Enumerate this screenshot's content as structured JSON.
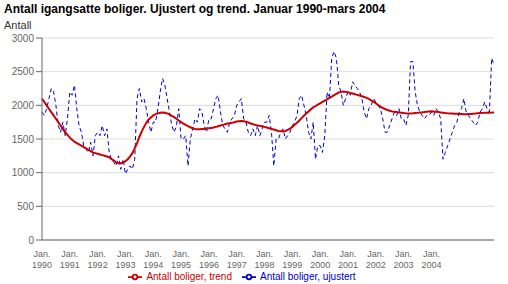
{
  "chart_data": {
    "type": "line",
    "title": "Antall igangsatte boliger. Ujustert og trend. Januar 1990-mars 2004",
    "ylabel": "Antall",
    "ylim": [
      0,
      3000
    ],
    "yticks": [
      0,
      500,
      1000,
      1500,
      2000,
      2500,
      3000
    ],
    "grid": true,
    "legend": "bottom",
    "categories": [
      "Jan.\n1990",
      null,
      null,
      null,
      null,
      null,
      null,
      null,
      null,
      null,
      null,
      null,
      "Jan.\n1991",
      null,
      null,
      null,
      null,
      null,
      null,
      null,
      null,
      null,
      null,
      null,
      "Jan.\n1992",
      null,
      null,
      null,
      null,
      null,
      null,
      null,
      null,
      null,
      null,
      null,
      "Jan.\n1993",
      null,
      null,
      null,
      null,
      null,
      null,
      null,
      null,
      null,
      null,
      null,
      "Jan.\n1994",
      null,
      null,
      null,
      null,
      null,
      null,
      null,
      null,
      null,
      null,
      null,
      "Jan.\n1995",
      null,
      null,
      null,
      null,
      null,
      null,
      null,
      null,
      null,
      null,
      null,
      "Jan.\n1996",
      null,
      null,
      null,
      null,
      null,
      null,
      null,
      null,
      null,
      null,
      null,
      "Jan.\n1997",
      null,
      null,
      null,
      null,
      null,
      null,
      null,
      null,
      null,
      null,
      null,
      "Jan.\n1998",
      null,
      null,
      null,
      null,
      null,
      null,
      null,
      null,
      null,
      null,
      null,
      "Jan.\n1999",
      null,
      null,
      null,
      null,
      null,
      null,
      null,
      null,
      null,
      null,
      null,
      "Jan.\n2000",
      null,
      null,
      null,
      null,
      null,
      null,
      null,
      null,
      null,
      null,
      null,
      "Jan.\n2001",
      null,
      null,
      null,
      null,
      null,
      null,
      null,
      null,
      null,
      null,
      null,
      "Jan.\n2002",
      null,
      null,
      null,
      null,
      null,
      null,
      null,
      null,
      null,
      null,
      null,
      "Jan.\n2003",
      null,
      null,
      null,
      null,
      null,
      null,
      null,
      null,
      null,
      null,
      null,
      "Jan.\n2004",
      null,
      null,
      null,
      null,
      null,
      null,
      null,
      null,
      null,
      null,
      null,
      null,
      null,
      null,
      null,
      null,
      null,
      null,
      null,
      null,
      null,
      null,
      null,
      null,
      null,
      null,
      null
    ],
    "series": [
      {
        "name": "Antall boliger, ujustert",
        "color": "#0000cc",
        "line_style": "dashed",
        "values": [
          1900,
          1850,
          1950,
          2100,
          2250,
          2200,
          2000,
          1700,
          1600,
          1750,
          1550,
          1800,
          2200,
          2150,
          2300,
          1950,
          1700,
          1600,
          1400,
          1350,
          1300,
          1450,
          1250,
          1550,
          1600,
          1550,
          1700,
          1550,
          1650,
          1300,
          1200,
          1150,
          1100,
          1250,
          1050,
          1200,
          980,
          1050,
          1100,
          1050,
          1200,
          2100,
          2250,
          2050,
          2100,
          1950,
          1750,
          1600,
          1750,
          1750,
          1950,
          2200,
          2400,
          2300,
          2100,
          1900,
          1700,
          1600,
          1700,
          1950,
          1500,
          1500,
          1550,
          1100,
          1500,
          1650,
          1800,
          1750,
          1950,
          1900,
          1700,
          1600,
          1800,
          1800,
          1950,
          2100,
          2150,
          1900,
          1700,
          1650,
          1600,
          1750,
          1800,
          1850,
          2000,
          2050,
          2100,
          1800,
          1750,
          1600,
          1550,
          1650,
          1550,
          1700,
          1550,
          1650,
          1750,
          1750,
          1850,
          1600,
          1100,
          1500,
          1500,
          1600,
          1650,
          1500,
          1550,
          1600,
          1700,
          1750,
          1850,
          2100,
          2150,
          2000,
          1850,
          1600,
          1500,
          1750,
          1200,
          1400,
          1400,
          1300,
          1550,
          2200,
          2100,
          2700,
          2800,
          2700,
          2300,
          2200,
          2000,
          2100,
          2200,
          2150,
          2350,
          2300,
          2250,
          2200,
          2100,
          1900,
          1800,
          1950,
          2000,
          2100,
          2050,
          2000,
          1950,
          1800,
          1600,
          1600,
          1700,
          1800,
          1900,
          1850,
          1950,
          1800,
          1800,
          1700,
          1850,
          2650,
          2650,
          2200,
          2000,
          1900,
          1850,
          1800,
          1850,
          1850,
          1900,
          1850,
          1950,
          1900,
          1800,
          1200,
          1300,
          1400,
          1500,
          1600,
          1700,
          1750,
          1900,
          1950,
          2100,
          1900,
          1850,
          1800,
          1750,
          1700,
          1750,
          1900,
          1950,
          2050,
          1950,
          1900,
          2700,
          2600
        ]
      },
      {
        "name": "Antall boliger, trend",
        "color": "#cc0000",
        "line_style": "solid",
        "values": [
          2100,
          2050,
          2000,
          1950,
          1900,
          1850,
          1800,
          1750,
          1700,
          1650,
          1600,
          1560,
          1520,
          1490,
          1460,
          1440,
          1420,
          1400,
          1380,
          1360,
          1340,
          1320,
          1300,
          1290,
          1280,
          1270,
          1260,
          1250,
          1240,
          1230,
          1200,
          1180,
          1150,
          1140,
          1140,
          1150,
          1170,
          1200,
          1240,
          1290,
          1360,
          1440,
          1530,
          1610,
          1680,
          1740,
          1790,
          1820,
          1850,
          1870,
          1880,
          1890,
          1895,
          1890,
          1880,
          1865,
          1845,
          1825,
          1800,
          1775,
          1750,
          1730,
          1710,
          1690,
          1675,
          1660,
          1650,
          1645,
          1645,
          1648,
          1650,
          1655,
          1660,
          1665,
          1670,
          1680,
          1690,
          1700,
          1710,
          1720,
          1730,
          1735,
          1740,
          1750,
          1760,
          1765,
          1768,
          1765,
          1755,
          1745,
          1730,
          1720,
          1710,
          1700,
          1695,
          1688,
          1680,
          1670,
          1660,
          1650,
          1640,
          1630,
          1620,
          1615,
          1615,
          1620,
          1635,
          1655,
          1680,
          1710,
          1740,
          1775,
          1810,
          1845,
          1880,
          1910,
          1940,
          1970,
          1990,
          2010,
          2030,
          2050,
          2070,
          2090,
          2110,
          2130,
          2150,
          2170,
          2190,
          2200,
          2205,
          2200,
          2195,
          2185,
          2175,
          2165,
          2155,
          2145,
          2135,
          2125,
          2110,
          2095,
          2075,
          2055,
          2030,
          2005,
          1980,
          1960,
          1945,
          1930,
          1920,
          1910,
          1905,
          1900,
          1895,
          1890,
          1885,
          1882,
          1880,
          1880,
          1882,
          1885,
          1888,
          1892,
          1895,
          1900,
          1905,
          1910,
          1912,
          1910,
          1905,
          1900,
          1895,
          1890,
          1885,
          1882,
          1880,
          1878,
          1876,
          1874,
          1872,
          1870,
          1868,
          1868,
          1870,
          1872,
          1875,
          1878,
          1882,
          1885,
          1888,
          1890,
          1890,
          1890,
          1892,
          1895
        ]
      }
    ]
  }
}
